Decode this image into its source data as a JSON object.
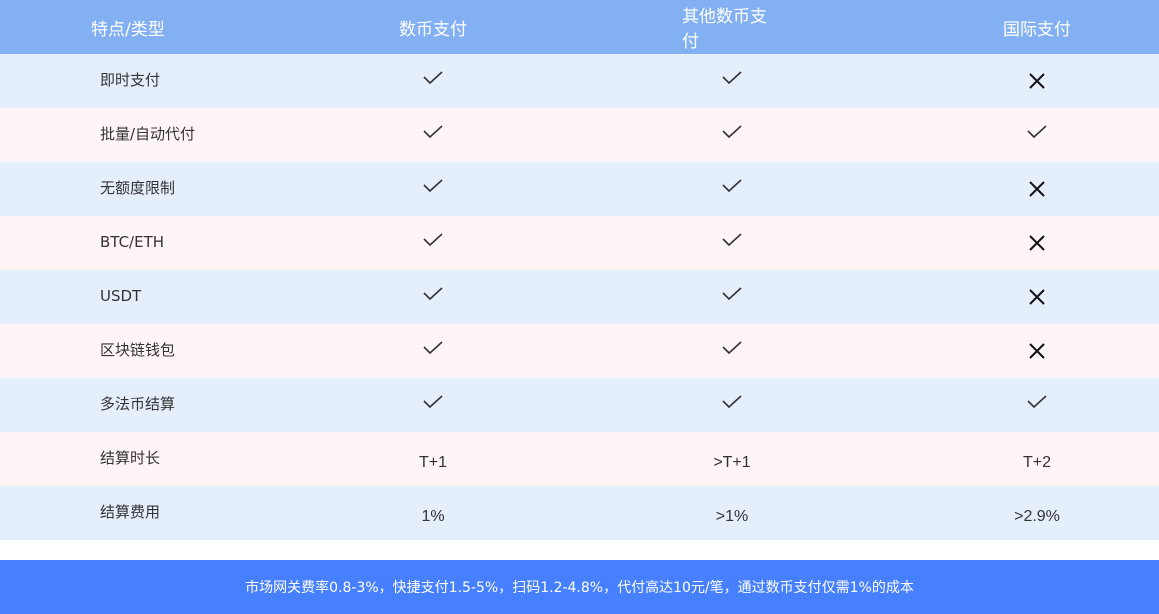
{
  "header": [
    "特点/类型",
    "数币支付",
    "其他数币支付",
    "国际支付"
  ],
  "rows": [
    {
      "label": "即时支付",
      "cells": [
        "check",
        "check",
        "cross"
      ]
    },
    {
      "label": "批量/自动代付",
      "cells": [
        "check",
        "check",
        "check"
      ]
    },
    {
      "label": "无额度限制",
      "cells": [
        "check",
        "check",
        "cross"
      ]
    },
    {
      "label": "BTC/ETH",
      "cells": [
        "check",
        "check",
        "cross"
      ]
    },
    {
      "label": "USDT",
      "cells": [
        "check",
        "check",
        "cross"
      ]
    },
    {
      "label": "区块链钱包",
      "cells": [
        "check",
        "check",
        "cross"
      ]
    },
    {
      "label": "多法币结算",
      "cells": [
        "check",
        "check",
        "check"
      ]
    },
    {
      "label": "结算时长",
      "cells": [
        "T+1",
        ">T+1",
        "T+2"
      ]
    },
    {
      "label": "结算费用",
      "cells": [
        "1%",
        ">1%",
        ">2.9%"
      ]
    }
  ],
  "footer": "市场网关费率0.8-3%，快捷支付1.5-5%，扫码1.2-4.8%，代付高达10元/笔，通过数币支付仅需1%的成本",
  "colors": {
    "header": "#82b0f3",
    "row_odd": "#e5effc",
    "row_even": "#fff5f6",
    "footer": "#4680fe"
  }
}
